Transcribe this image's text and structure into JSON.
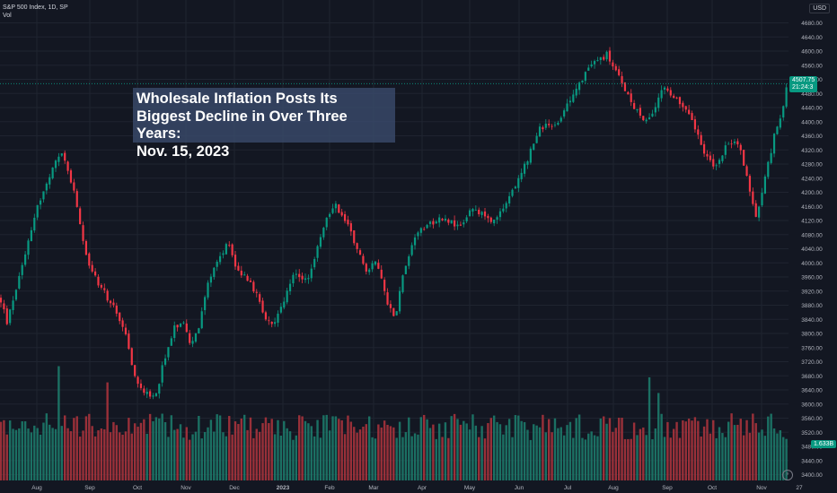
{
  "header": {
    "instrument": "S&P 500 Index, 1D, SP",
    "volume_label": "Vol",
    "currency": "USD"
  },
  "annotation": {
    "line1": "Wholesale Inflation Posts Its",
    "line2": "Biggest Decline in Over Three Years:",
    "line3": "Nov. 15, 2023"
  },
  "price_tag": {
    "price": "4507.75",
    "countdown": "21:24:3",
    "color": "#089981"
  },
  "volume_tag": {
    "value": "1.633B",
    "color": "#089981"
  },
  "colors": {
    "up": "#089981",
    "down": "#f23645",
    "up_vol": "#1d7a6a",
    "down_vol": "#a8333c",
    "grid": "#1f2430",
    "text": "#b2b5be"
  },
  "chart_data": {
    "type": "candlestick",
    "x_axis": {
      "ticks": [
        "Aug",
        "Sep",
        "Oct",
        "Nov",
        "Dec",
        "2023",
        "Feb",
        "Mar",
        "Apr",
        "May",
        "Jun",
        "Jul",
        "Aug",
        "Sep",
        "Oct",
        "Nov",
        "27"
      ]
    },
    "y_axis": {
      "ticks": [
        3400,
        3440,
        3480,
        3520,
        3560,
        3600,
        3640,
        3680,
        3720,
        3760,
        3800,
        3840,
        3880,
        3920,
        3960,
        4000,
        4040,
        4080,
        4120,
        4160,
        4200,
        4240,
        4280,
        4320,
        4360,
        4400,
        4440,
        4480,
        4520,
        4560,
        4600,
        4640,
        4680
      ],
      "range": [
        3400,
        4700
      ]
    },
    "path_points": [
      [
        0,
        3900
      ],
      [
        8,
        3830
      ],
      [
        25,
        4000
      ],
      [
        40,
        4150
      ],
      [
        55,
        4240
      ],
      [
        68,
        4320
      ],
      [
        78,
        4240
      ],
      [
        85,
        4170
      ],
      [
        95,
        4020
      ],
      [
        110,
        3940
      ],
      [
        125,
        3880
      ],
      [
        140,
        3790
      ],
      [
        150,
        3680
      ],
      [
        160,
        3640
      ],
      [
        168,
        3610
      ],
      [
        175,
        3640
      ],
      [
        182,
        3720
      ],
      [
        195,
        3820
      ],
      [
        205,
        3840
      ],
      [
        212,
        3760
      ],
      [
        222,
        3820
      ],
      [
        233,
        3960
      ],
      [
        245,
        4020
      ],
      [
        255,
        4060
      ],
      [
        262,
        3990
      ],
      [
        270,
        3970
      ],
      [
        282,
        3930
      ],
      [
        293,
        3860
      ],
      [
        303,
        3820
      ],
      [
        312,
        3860
      ],
      [
        325,
        3960
      ],
      [
        345,
        3960
      ],
      [
        360,
        4100
      ],
      [
        372,
        4170
      ],
      [
        385,
        4120
      ],
      [
        395,
        4060
      ],
      [
        408,
        3980
      ],
      [
        420,
        4000
      ],
      [
        432,
        3880
      ],
      [
        440,
        3850
      ],
      [
        450,
        3980
      ],
      [
        462,
        4080
      ],
      [
        475,
        4110
      ],
      [
        495,
        4130
      ],
      [
        510,
        4100
      ],
      [
        525,
        4150
      ],
      [
        550,
        4120
      ],
      [
        565,
        4180
      ],
      [
        575,
        4220
      ],
      [
        590,
        4310
      ],
      [
        600,
        4380
      ],
      [
        612,
        4390
      ],
      [
        625,
        4410
      ],
      [
        640,
        4490
      ],
      [
        650,
        4530
      ],
      [
        662,
        4570
      ],
      [
        676,
        4590
      ],
      [
        690,
        4520
      ],
      [
        705,
        4450
      ],
      [
        715,
        4400
      ],
      [
        728,
        4430
      ],
      [
        740,
        4500
      ],
      [
        752,
        4460
      ],
      [
        765,
        4440
      ],
      [
        775,
        4380
      ],
      [
        785,
        4300
      ],
      [
        798,
        4270
      ],
      [
        810,
        4340
      ],
      [
        822,
        4340
      ],
      [
        830,
        4260
      ],
      [
        842,
        4130
      ],
      [
        852,
        4240
      ],
      [
        862,
        4360
      ],
      [
        870,
        4410
      ],
      [
        876,
        4508
      ]
    ],
    "last_price": 4507.75,
    "last_volume": "1.633B"
  }
}
